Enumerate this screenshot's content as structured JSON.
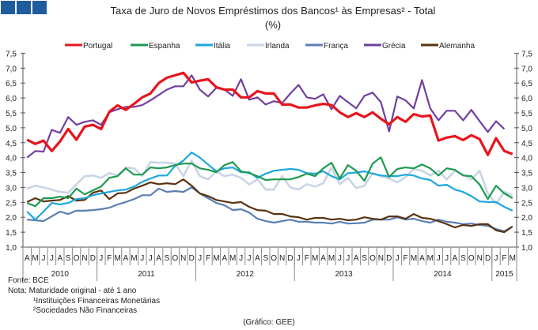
{
  "colors": {
    "logo": "#1f5c9e",
    "axis": "#555555"
  },
  "chart_data": {
    "type": "line",
    "title": "Taxa de Juro de Novos Empréstimos dos Bancos¹ às Empresas² - Total",
    "subtitle": "(%)",
    "ylim": [
      1.0,
      7.5
    ],
    "yticks": [
      "1,0",
      "1,5",
      "2,0",
      "2,5",
      "3,0",
      "3,5",
      "4,0",
      "4,5",
      "5,0",
      "5,5",
      "6,0",
      "6,5",
      "7,0",
      "7,5"
    ],
    "ytick_values": [
      1.0,
      1.5,
      2.0,
      2.5,
      3.0,
      3.5,
      4.0,
      4.5,
      5.0,
      5.5,
      6.0,
      6.5,
      7.0,
      7.5
    ],
    "month_labels": [
      "A",
      "M",
      "J",
      "J",
      "A",
      "S",
      "O",
      "N",
      "D",
      "J",
      "F",
      "M",
      "A",
      "M",
      "J",
      "J",
      "A",
      "S",
      "O",
      "N",
      "D",
      "J",
      "F",
      "M",
      "A",
      "M",
      "J",
      "J",
      "A",
      "S",
      "O",
      "N",
      "D",
      "J",
      "F",
      "M",
      "A",
      "M",
      "J",
      "J",
      "A",
      "S",
      "O",
      "N",
      "D",
      "J",
      "F",
      "M",
      "A",
      "M",
      "J",
      "J",
      "A",
      "S",
      "O",
      "N",
      "D",
      "J",
      "F",
      "M"
    ],
    "years": [
      {
        "label": "2010",
        "start": 0,
        "end": 9
      },
      {
        "label": "2011",
        "start": 9,
        "end": 21
      },
      {
        "label": "2012",
        "start": 21,
        "end": 33
      },
      {
        "label": "2013",
        "start": 33,
        "end": 45
      },
      {
        "label": "2014",
        "start": 45,
        "end": 57
      },
      {
        "label": "2015",
        "start": 57,
        "end": 60
      }
    ],
    "grid": false,
    "legend_position": "top",
    "series": [
      {
        "name": "Portugal",
        "color": "#e8141c",
        "width": 3.2,
        "values": [
          4.6,
          4.46,
          4.57,
          4.22,
          4.54,
          4.96,
          4.6,
          5.04,
          5.1,
          4.96,
          5.54,
          5.75,
          5.6,
          5.8,
          6.02,
          6.15,
          6.5,
          6.68,
          6.76,
          6.84,
          6.52,
          6.58,
          6.63,
          6.36,
          6.28,
          6.28,
          6.02,
          6.02,
          6.23,
          6.15,
          6.15,
          5.78,
          5.78,
          5.68,
          5.68,
          5.75,
          5.8,
          5.76,
          5.52,
          5.36,
          5.49,
          5.36,
          5.52,
          5.3,
          5.12,
          5.36,
          5.2,
          5.46,
          5.38,
          5.41,
          4.57,
          4.67,
          4.72,
          4.59,
          4.75,
          4.62,
          4.09,
          4.65,
          4.22,
          4.12
        ]
      },
      {
        "name": "Espanha",
        "color": "#1f9a4f",
        "width": 2.2,
        "values": [
          2.48,
          2.37,
          2.64,
          2.64,
          2.69,
          2.64,
          2.96,
          2.77,
          2.9,
          3.03,
          3.32,
          3.38,
          3.64,
          3.43,
          3.43,
          3.67,
          3.64,
          3.67,
          3.75,
          3.8,
          3.8,
          3.64,
          3.59,
          3.51,
          3.75,
          3.85,
          3.54,
          3.48,
          3.38,
          3.25,
          3.27,
          3.27,
          3.27,
          3.35,
          3.46,
          3.38,
          3.64,
          3.83,
          3.3,
          3.75,
          3.56,
          3.22,
          3.8,
          4.01,
          3.35,
          3.62,
          3.67,
          3.64,
          3.77,
          3.64,
          3.4,
          3.64,
          3.59,
          3.4,
          3.38,
          3.1,
          2.61,
          3.06,
          2.8,
          2.64
        ]
      },
      {
        "name": "Itália",
        "color": "#1ea7dd",
        "width": 2.2,
        "values": [
          2.19,
          1.92,
          2.19,
          2.48,
          2.43,
          2.48,
          2.61,
          2.64,
          2.74,
          2.8,
          2.85,
          2.9,
          2.93,
          3.03,
          3.19,
          3.3,
          3.4,
          3.4,
          3.72,
          3.9,
          4.17,
          4.0,
          3.77,
          3.54,
          3.64,
          3.67,
          3.51,
          3.51,
          3.32,
          3.46,
          3.56,
          3.59,
          3.62,
          3.59,
          3.48,
          3.46,
          3.54,
          3.38,
          3.27,
          3.48,
          3.5,
          3.54,
          3.46,
          3.4,
          3.38,
          3.38,
          3.43,
          3.4,
          3.3,
          3.25,
          3.06,
          3.09,
          2.93,
          2.85,
          2.71,
          2.53,
          2.51,
          2.51,
          2.35,
          2.22
        ]
      },
      {
        "name": "Irlanda",
        "color": "#c8d5e6",
        "width": 2.6,
        "values": [
          2.96,
          3.06,
          3.0,
          2.93,
          2.85,
          2.82,
          3.1,
          3.38,
          3.4,
          3.32,
          3.48,
          3.4,
          3.67,
          3.64,
          3.38,
          3.85,
          3.83,
          3.83,
          3.8,
          3.38,
          3.9,
          3.38,
          3.27,
          3.54,
          3.38,
          3.43,
          3.32,
          3.1,
          3.27,
          2.93,
          2.93,
          3.38,
          3.0,
          2.93,
          3.11,
          3.03,
          3.14,
          3.67,
          3.11,
          3.32,
          2.98,
          3.06,
          3.48,
          3.38,
          3.3,
          3.17,
          3.35,
          3.62,
          3.56,
          3.4,
          3.56,
          3.27,
          3.56,
          3.43,
          3.27,
          3.56,
          2.8,
          2.45,
          2.85,
          2.74
        ]
      },
      {
        "name": "França",
        "color": "#5b7fb3",
        "width": 2.2,
        "values": [
          1.92,
          1.9,
          1.87,
          2.03,
          2.19,
          2.11,
          2.22,
          2.22,
          2.24,
          2.27,
          2.32,
          2.43,
          2.51,
          2.61,
          2.74,
          2.74,
          2.96,
          2.85,
          2.88,
          2.85,
          3.0,
          2.8,
          2.64,
          2.48,
          2.4,
          2.24,
          2.27,
          2.16,
          1.95,
          1.87,
          1.82,
          1.87,
          1.92,
          1.85,
          1.85,
          1.82,
          1.82,
          1.79,
          1.85,
          1.79,
          1.8,
          1.82,
          1.92,
          1.92,
          1.92,
          2.0,
          1.92,
          1.95,
          1.87,
          1.82,
          1.92,
          1.85,
          1.82,
          1.77,
          1.79,
          1.74,
          1.71,
          1.61,
          1.53,
          1.69
        ]
      },
      {
        "name": "Grécia",
        "color": "#7040a0",
        "width": 2.2,
        "values": [
          4.0,
          4.22,
          4.2,
          4.93,
          4.83,
          5.36,
          5.1,
          5.2,
          5.25,
          5.1,
          5.52,
          5.62,
          5.7,
          5.7,
          5.76,
          5.92,
          6.1,
          6.28,
          6.39,
          6.39,
          6.76,
          6.28,
          6.05,
          6.34,
          6.28,
          6.07,
          6.63,
          5.94,
          6.02,
          5.78,
          5.89,
          5.83,
          6.15,
          6.44,
          6.02,
          5.97,
          6.12,
          5.62,
          6.07,
          5.86,
          5.65,
          6.07,
          6.18,
          5.86,
          4.88,
          6.05,
          5.92,
          5.65,
          6.6,
          5.65,
          5.25,
          5.57,
          5.57,
          5.25,
          5.6,
          5.22,
          4.86,
          5.22,
          4.96,
          null
        ]
      },
      {
        "name": "Alemanha",
        "color": "#5a3310",
        "width": 2.2,
        "values": [
          2.51,
          2.64,
          2.53,
          2.56,
          2.58,
          2.71,
          2.56,
          2.58,
          2.82,
          2.9,
          2.61,
          2.8,
          2.82,
          2.96,
          3.06,
          3.17,
          3.11,
          3.14,
          3.11,
          3.27,
          3.06,
          2.8,
          2.71,
          2.58,
          2.53,
          2.48,
          2.51,
          2.35,
          2.24,
          2.22,
          2.11,
          2.11,
          2.03,
          2.0,
          1.92,
          1.98,
          1.98,
          1.92,
          1.95,
          1.9,
          1.92,
          2.0,
          1.95,
          1.92,
          2.03,
          2.03,
          1.95,
          2.11,
          1.98,
          1.95,
          1.87,
          1.77,
          1.66,
          1.74,
          1.71,
          1.77,
          1.77,
          1.56,
          1.5,
          1.69
        ]
      }
    ]
  },
  "footer": {
    "source": "Fonte: BCE",
    "note": "Nota: Maturidade original - até 1 ano",
    "note1": "¹Instituições Financeiras Monetárias",
    "note2": "²Sociedades Não Financeiras",
    "credit": "(Gráfico: GEE)"
  }
}
